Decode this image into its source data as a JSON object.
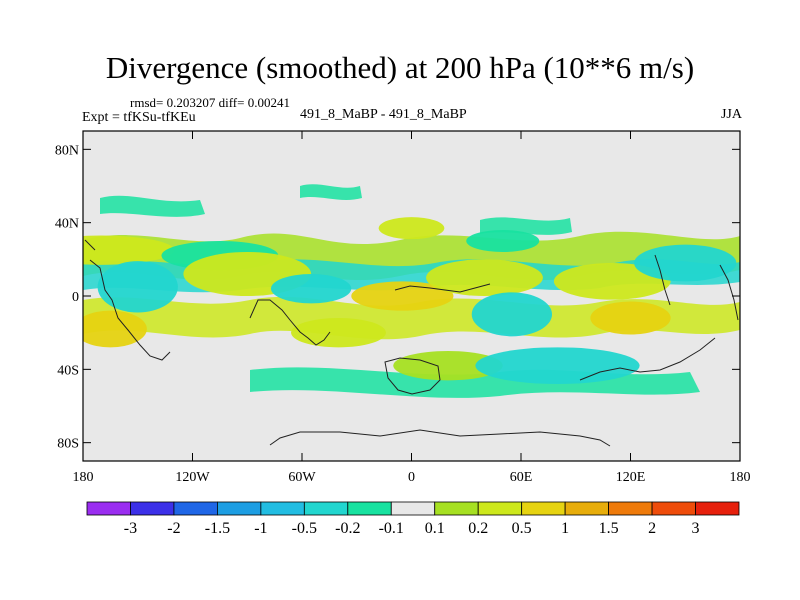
{
  "header": {
    "title": "Divergence (smoothed) at 200 hPa (10**6 m/s)",
    "stats": "rmsd= 0.203207 diff= 0.00241",
    "expt": "Expt = tfKSu-tfKEu",
    "runs": "491_8_MaBP - 491_8_MaBP",
    "season": "JJA"
  },
  "chart_data": {
    "type": "heatmap",
    "title": "Divergence (smoothed) at 200 hPa (10**6 m/s)",
    "field": "200 hPa smoothed divergence difference",
    "units": "10**6 m/s",
    "x_axis": {
      "label": "",
      "range": [
        -180,
        180
      ],
      "ticks": [
        -180,
        -120,
        -60,
        0,
        60,
        120,
        180
      ],
      "tick_labels": [
        "180",
        "120W",
        "60W",
        "0",
        "60E",
        "120E",
        "180"
      ]
    },
    "y_axis": {
      "label": "",
      "range": [
        -90,
        90
      ],
      "ticks": [
        80,
        40,
        0,
        -40,
        -80
      ],
      "tick_labels": [
        "80N",
        "40N",
        "0",
        "40S",
        "80S"
      ]
    },
    "colorbar": {
      "labels": [
        "-3",
        "-2",
        "-1.5",
        "-1",
        "-0.5",
        "-0.2",
        "-0.1",
        "0.1",
        "0.2",
        "0.5",
        "1",
        "1.5",
        "2",
        "3"
      ],
      "colors": [
        "#9a2df0",
        "#3c30e8",
        "#1f66e6",
        "#1d9ee3",
        "#22bde2",
        "#22d6cf",
        "#18e2a0",
        "#e8e8e8",
        "#a6e022",
        "#cde81c",
        "#e6d311",
        "#e7ad0b",
        "#ee7a0a",
        "#ee4c0a",
        "#e6200c"
      ]
    },
    "regions": [
      {
        "lon": -170,
        "lat": 25,
        "w": 40,
        "h": 8,
        "v": 0.3
      },
      {
        "lon": -150,
        "lat": 5,
        "w": 22,
        "h": 14,
        "v": -0.3
      },
      {
        "lon": -105,
        "lat": 22,
        "w": 32,
        "h": 8,
        "v": -0.15
      },
      {
        "lon": -90,
        "lat": 12,
        "w": 35,
        "h": 12,
        "v": 0.3
      },
      {
        "lon": -55,
        "lat": 4,
        "w": 22,
        "h": 8,
        "v": -0.4
      },
      {
        "lon": -5,
        "lat": 0,
        "w": 28,
        "h": 8,
        "v": 0.9
      },
      {
        "lon": 40,
        "lat": 10,
        "w": 32,
        "h": 10,
        "v": 0.3
      },
      {
        "lon": 55,
        "lat": -10,
        "w": 22,
        "h": 12,
        "v": -0.3
      },
      {
        "lon": 110,
        "lat": 8,
        "w": 32,
        "h": 10,
        "v": 0.3
      },
      {
        "lon": 120,
        "lat": -12,
        "w": 22,
        "h": 9,
        "v": 0.8
      },
      {
        "lon": 150,
        "lat": 18,
        "w": 28,
        "h": 10,
        "v": -0.3
      },
      {
        "lon": -165,
        "lat": -18,
        "w": 20,
        "h": 10,
        "v": 0.7
      },
      {
        "lon": -40,
        "lat": -20,
        "w": 26,
        "h": 8,
        "v": 0.3
      },
      {
        "lon": 20,
        "lat": -38,
        "w": 30,
        "h": 8,
        "v": 0.2
      },
      {
        "lon": 80,
        "lat": -38,
        "w": 45,
        "h": 10,
        "v": -0.2
      },
      {
        "lon": 0,
        "lat": 37,
        "w": 18,
        "h": 6,
        "v": 0.4
      },
      {
        "lon": 50,
        "lat": 30,
        "w": 20,
        "h": 6,
        "v": -0.15
      }
    ]
  }
}
